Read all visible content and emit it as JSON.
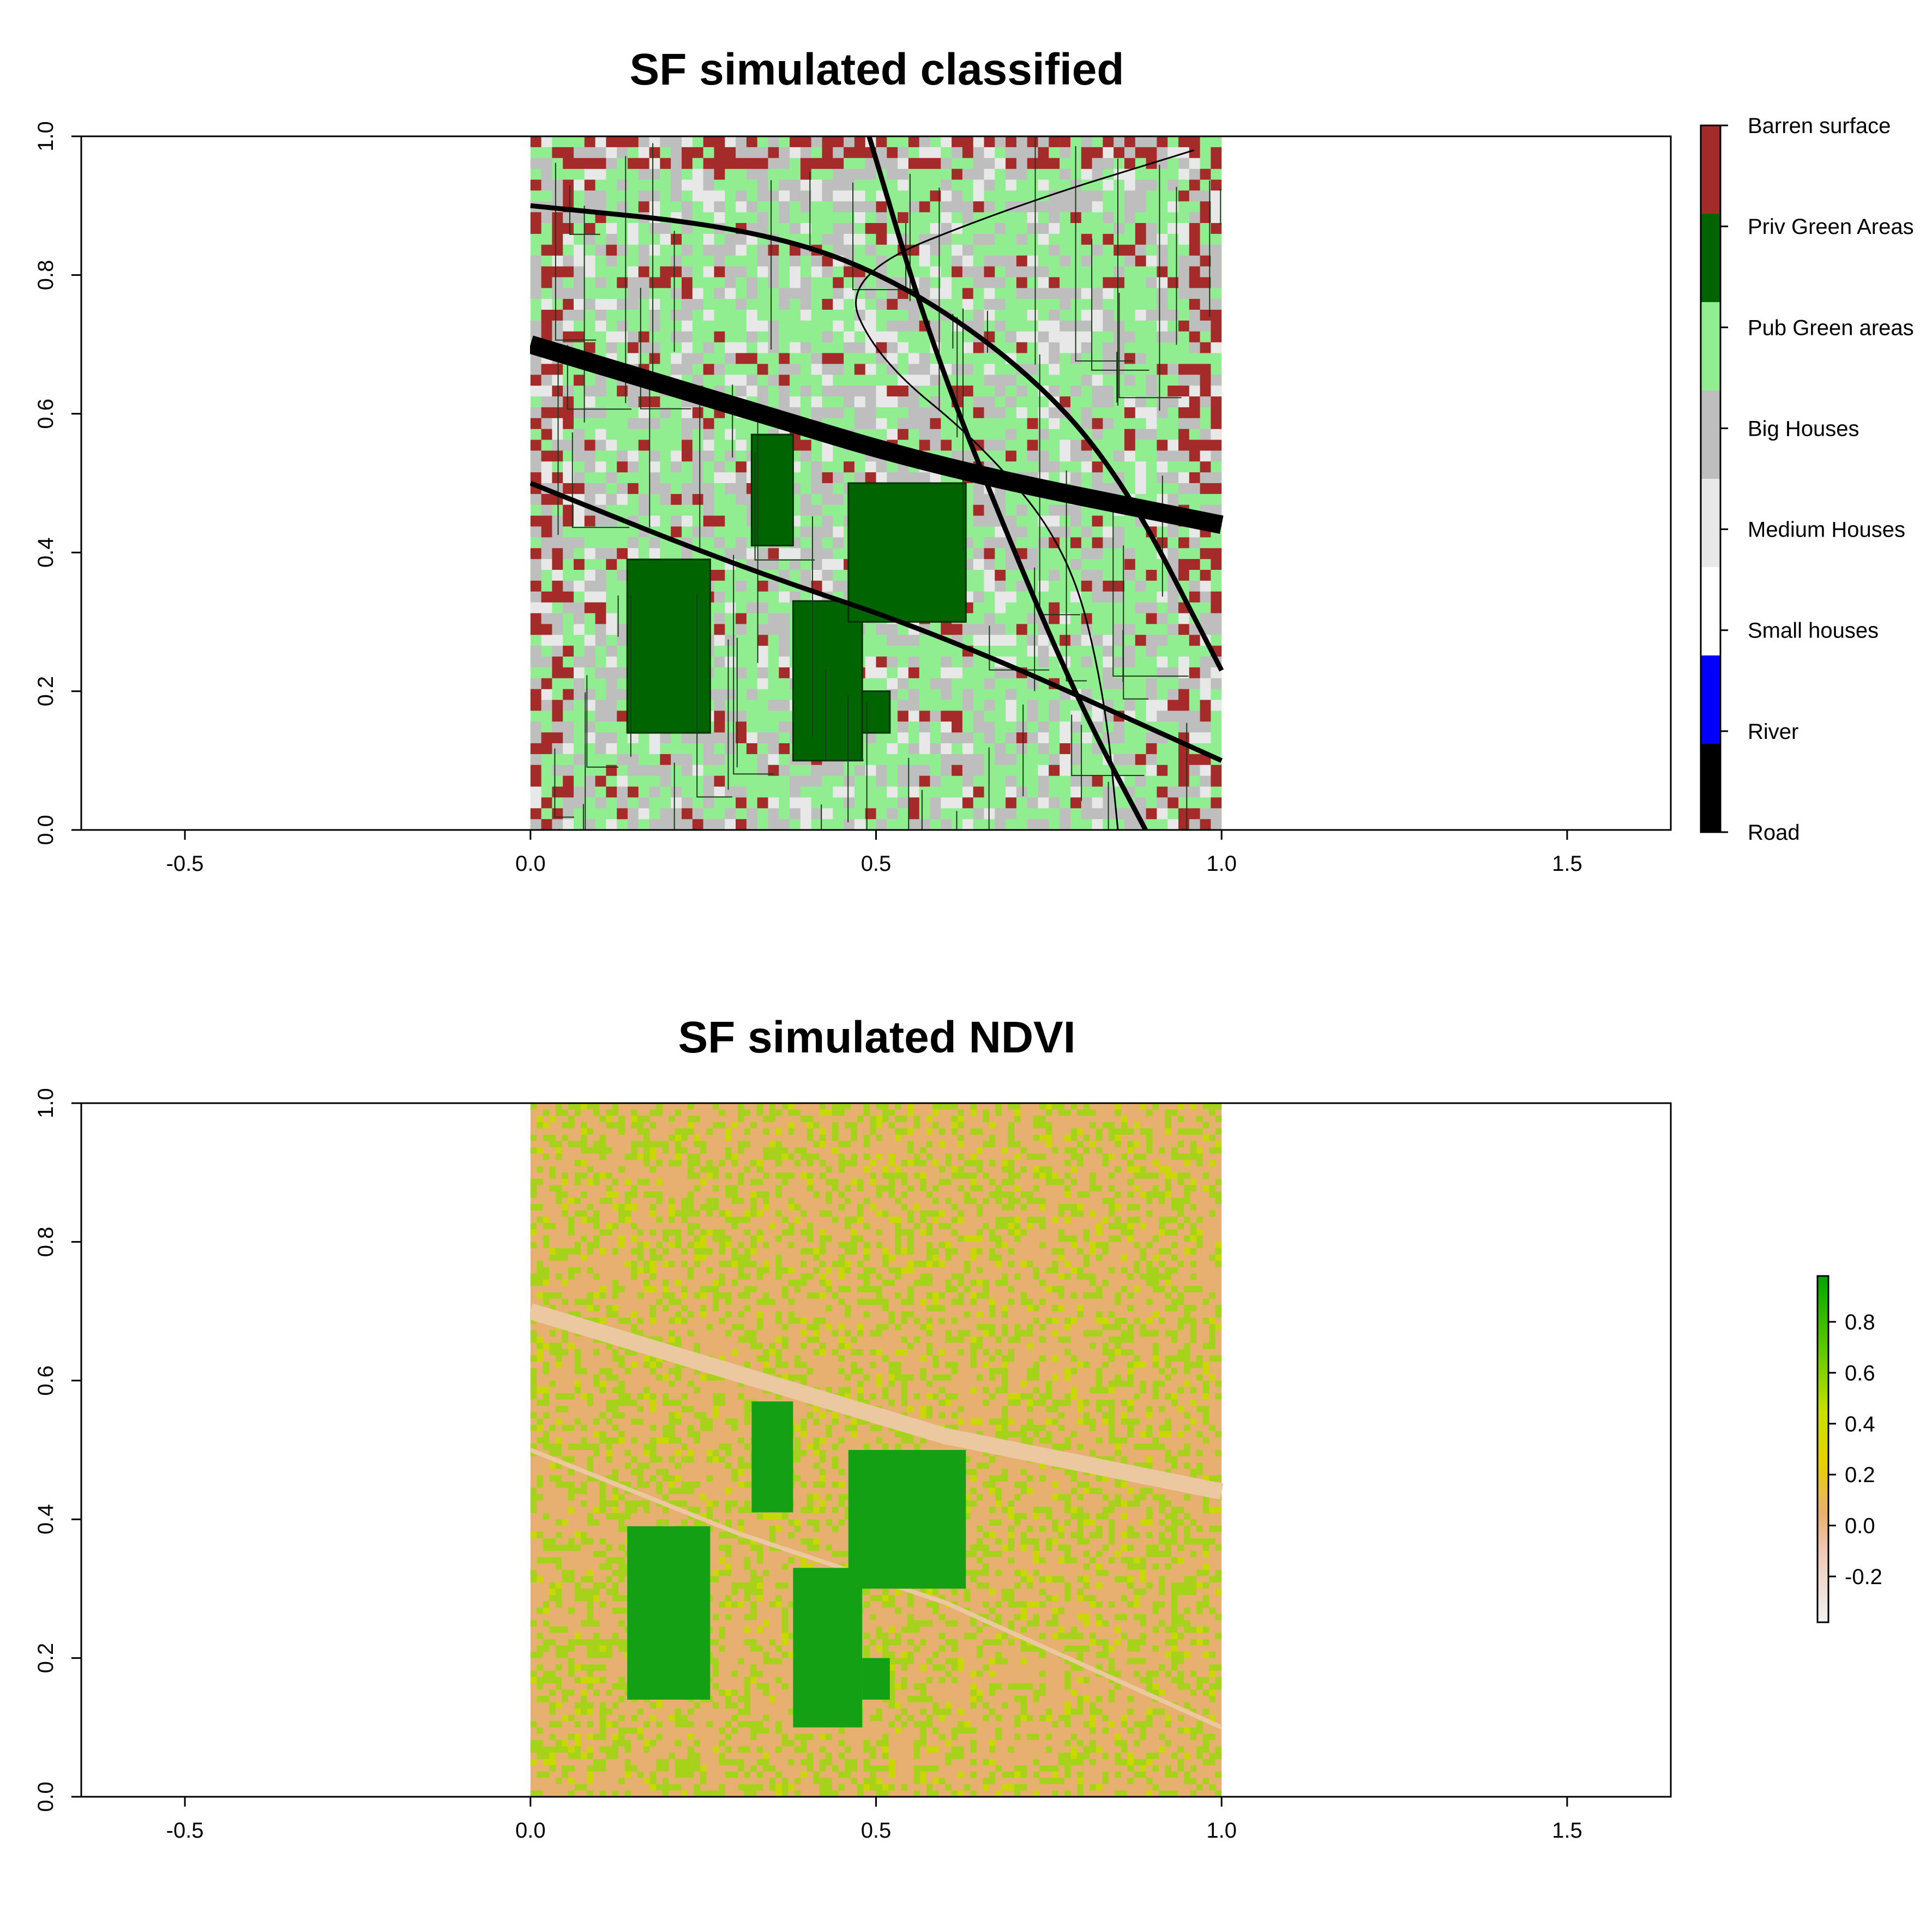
{
  "chart_data": [
    {
      "type": "heatmap",
      "title": "SF simulated classified",
      "xlabel": "",
      "ylabel": "",
      "xlim": [
        -0.65,
        1.65
      ],
      "ylim": [
        0,
        1
      ],
      "x_ticks": [
        "-0.5",
        "0.0",
        "0.5",
        "1.0",
        "1.5"
      ],
      "y_ticks": [
        "0.0",
        "0.2",
        "0.4",
        "0.6",
        "0.8",
        "1.0"
      ],
      "raster_extent": {
        "x": [
          0,
          1
        ],
        "y": [
          0,
          1
        ]
      },
      "legend_position": "right",
      "legend": [
        {
          "label": "Road",
          "color": "#000000"
        },
        {
          "label": "River",
          "color": "#0000ff"
        },
        {
          "label": "Small houses",
          "color": "#ffffff"
        },
        {
          "label": "Medium Houses",
          "color": "#e8e8e8"
        },
        {
          "label": "Big Houses",
          "color": "#bebebe"
        },
        {
          "label": "Pub Green areas",
          "color": "#90ee90"
        },
        {
          "label": "Priv Green Areas",
          "color": "#006400"
        },
        {
          "label": "Barren surface",
          "color": "#a52a2a"
        }
      ],
      "overlay_lines": [
        {
          "name": "main road",
          "points": [
            [
              0,
              0.7
            ],
            [
              0.3,
              0.61
            ],
            [
              0.6,
              0.52
            ],
            [
              1.0,
              0.44
            ]
          ],
          "width": "thick"
        },
        {
          "name": "upper curve",
          "points": [
            [
              0,
              0.9
            ],
            [
              0.3,
              0.87
            ],
            [
              0.5,
              0.81
            ],
            [
              0.7,
              0.68
            ],
            [
              0.85,
              0.52
            ],
            [
              1.0,
              0.23
            ]
          ],
          "width": "medium"
        },
        {
          "name": "lower diagonal",
          "points": [
            [
              0,
              0.5
            ],
            [
              0.3,
              0.38
            ],
            [
              0.6,
              0.28
            ],
            [
              1.0,
              0.1
            ]
          ],
          "width": "medium"
        },
        {
          "name": "north-south road",
          "points": [
            [
              0.49,
              1.0
            ],
            [
              0.58,
              0.7
            ],
            [
              0.7,
              0.4
            ],
            [
              0.8,
              0.17
            ],
            [
              0.89,
              0.0
            ]
          ],
          "width": "medium"
        },
        {
          "name": "arc",
          "points": [
            [
              0.96,
              0.98
            ],
            [
              0.7,
              0.9
            ],
            [
              0.45,
              0.8
            ],
            [
              0.5,
              0.68
            ],
            [
              0.66,
              0.55
            ],
            [
              0.78,
              0.4
            ],
            [
              0.83,
              0.2
            ],
            [
              0.85,
              0.0
            ]
          ],
          "width": "thin"
        }
      ],
      "private_green_blocks": [
        {
          "x": [
            0.14,
            0.26
          ],
          "y": [
            0.14,
            0.39
          ]
        },
        {
          "x": [
            0.32,
            0.38
          ],
          "y": [
            0.41,
            0.57
          ]
        },
        {
          "x": [
            0.38,
            0.48
          ],
          "y": [
            0.1,
            0.33
          ]
        },
        {
          "x": [
            0.48,
            0.52
          ],
          "y": [
            0.14,
            0.2
          ]
        },
        {
          "x": [
            0.46,
            0.63
          ],
          "y": [
            0.3,
            0.5
          ]
        }
      ]
    },
    {
      "type": "heatmap",
      "title": "SF simulated NDVI",
      "xlabel": "",
      "ylabel": "",
      "xlim": [
        -0.65,
        1.65
      ],
      "ylim": [
        0,
        1
      ],
      "x_ticks": [
        "-0.5",
        "0.0",
        "0.5",
        "1.0",
        "1.5"
      ],
      "y_ticks": [
        "0.0",
        "0.2",
        "0.4",
        "0.6",
        "0.8",
        "1.0"
      ],
      "raster_extent": {
        "x": [
          0,
          1
        ],
        "y": [
          0,
          1
        ]
      },
      "colorbar": {
        "range": [
          -0.38,
          0.98
        ],
        "ticks": [
          "-0.2",
          "0.0",
          "0.2",
          "0.4",
          "0.6",
          "0.8"
        ],
        "tick_values": [
          -0.2,
          0.0,
          0.2,
          0.4,
          0.6,
          0.8
        ],
        "stops": [
          {
            "value": -0.38,
            "color": "#f2f2f2"
          },
          {
            "value": -0.1,
            "color": "#eec9b5"
          },
          {
            "value": 0.05,
            "color": "#e8b070"
          },
          {
            "value": 0.25,
            "color": "#e6d200"
          },
          {
            "value": 0.45,
            "color": "#c8e000"
          },
          {
            "value": 0.7,
            "color": "#5cc800"
          },
          {
            "value": 0.98,
            "color": "#00a600"
          }
        ]
      },
      "background_color": "#e8b070",
      "vegetation_color": "#a6d21c",
      "dense_vegetation_color": "#14a014",
      "road_color": "#ecc8a0"
    }
  ]
}
